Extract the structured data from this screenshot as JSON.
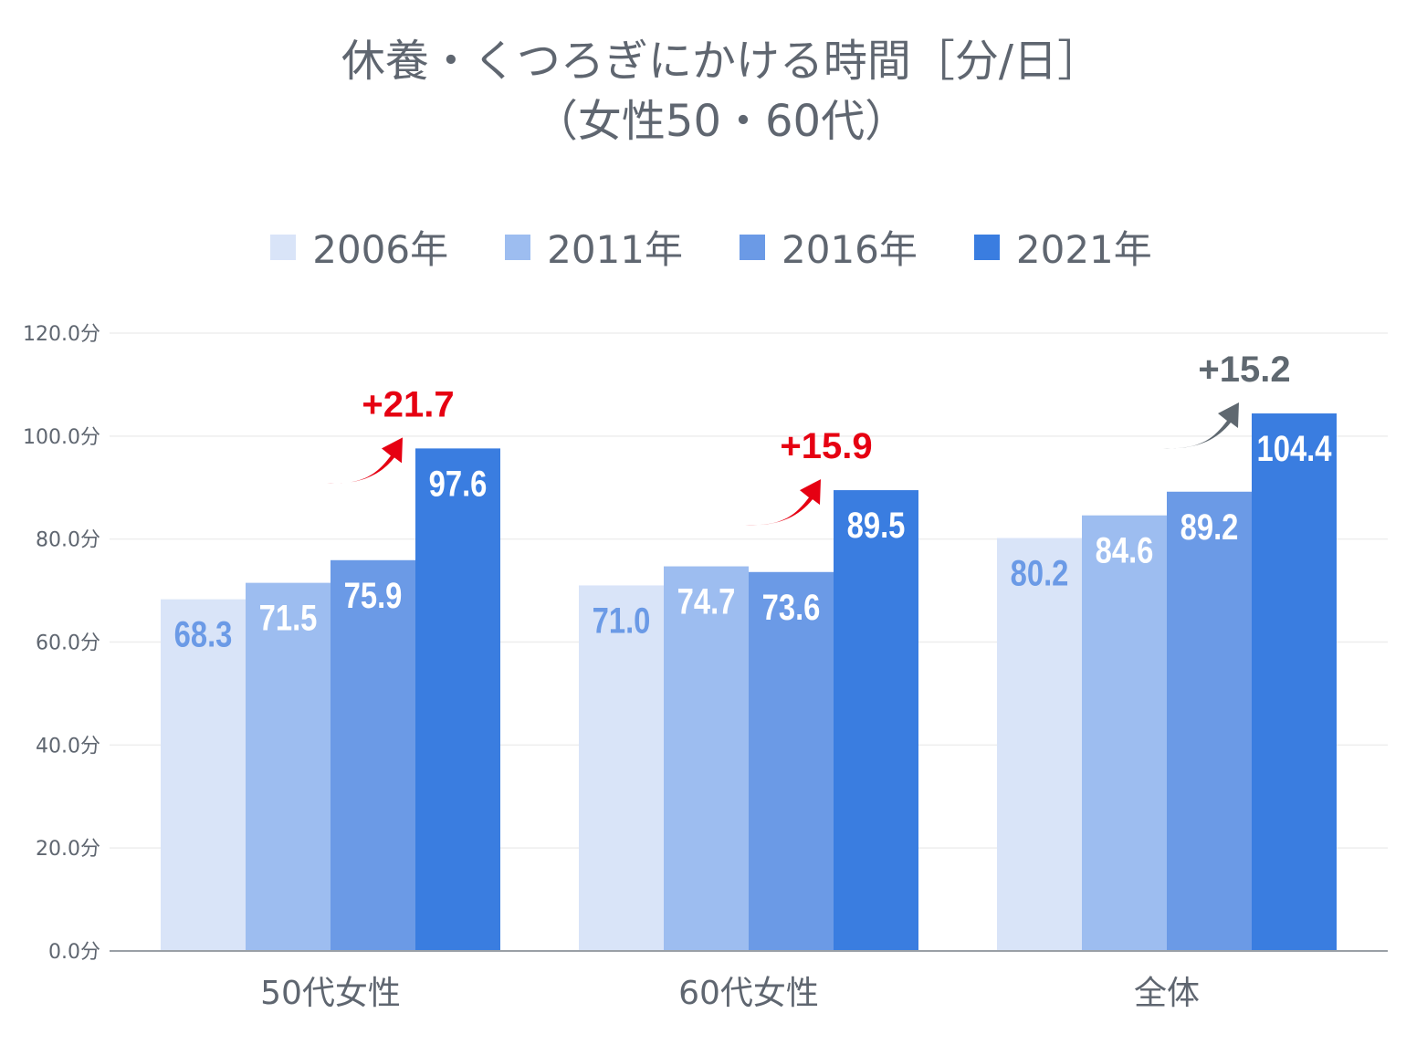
{
  "chart_data": {
    "type": "bar",
    "title": "休養・くつろぎにかける時間［分/日］",
    "subtitle": "（女性50・60代）",
    "categories": [
      "50代女性",
      "60代女性",
      "全体"
    ],
    "series": [
      {
        "name": "2006年",
        "values": [
          68.3,
          71.0,
          80.2
        ],
        "color": "#d9e4f8",
        "label_color": "#6b9ae6"
      },
      {
        "name": "2011年",
        "values": [
          71.5,
          74.7,
          84.6
        ],
        "color": "#9dbdf0",
        "label_color": "#ffffff"
      },
      {
        "name": "2016年",
        "values": [
          75.9,
          73.6,
          89.2
        ],
        "color": "#6b9ae6",
        "label_color": "#ffffff"
      },
      {
        "name": "2021年",
        "values": [
          97.6,
          89.5,
          104.4
        ],
        "color": "#3a7de0",
        "label_color": "#ffffff"
      }
    ],
    "ylim": [
      0,
      120
    ],
    "yticks": [
      "0.0分",
      "20.0分",
      "40.0分",
      "60.0分",
      "80.0分",
      "100.0分",
      "120.0分"
    ],
    "grid": true,
    "legend": "top",
    "annotations": [
      {
        "category": "50代女性",
        "text": "+21.7",
        "color": "#e60012",
        "icon": "curved-up-arrow"
      },
      {
        "category": "60代女性",
        "text": "+15.9",
        "color": "#e60012",
        "icon": "curved-up-arrow"
      },
      {
        "category": "全体",
        "text": "+15.2",
        "color": "#5f6870",
        "icon": "curved-up-arrow"
      }
    ]
  }
}
